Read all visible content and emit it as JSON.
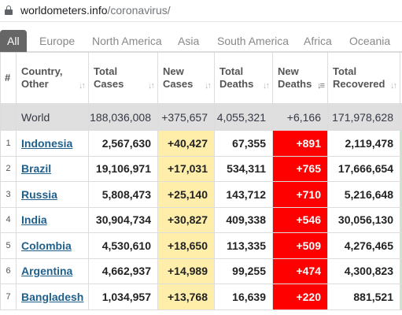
{
  "browser": {
    "url_domain": "worldometers.info",
    "url_path": "/coronavirus/"
  },
  "tabs": [
    "All",
    "Europe",
    "North America",
    "Asia",
    "South America",
    "Africa",
    "Oceania"
  ],
  "header": {
    "hash": "#",
    "country_line1": "Country,",
    "country_line2": "Other",
    "total_cases_line1": "Total",
    "total_cases_line2": "Cases",
    "new_cases_line1": "New",
    "new_cases_line2": "Cases",
    "total_deaths_line1": "Total",
    "total_deaths_line2": "Deaths",
    "new_deaths_line1": "New",
    "new_deaths_line2": "Deaths",
    "total_recovered_line1": "Total",
    "total_recovered_line2": "Recovered",
    "sort_icon": "sort-arrows-icon",
    "sort_active_icon": "sort-descending-icon"
  },
  "world": {
    "country": "World",
    "total_cases": "188,036,008",
    "new_cases": "+375,657",
    "total_deaths": "4,055,321",
    "new_deaths": "+6,166",
    "total_recovered": "171,978,628"
  },
  "rows": [
    {
      "idx": "1",
      "country": "Indonesia",
      "total_cases": "2,567,630",
      "new_cases": "+40,427",
      "total_deaths": "67,355",
      "new_deaths": "+891",
      "total_recovered": "2,119,478"
    },
    {
      "idx": "2",
      "country": "Brazil",
      "total_cases": "19,106,971",
      "new_cases": "+17,031",
      "total_deaths": "534,311",
      "new_deaths": "+765",
      "total_recovered": "17,666,654"
    },
    {
      "idx": "3",
      "country": "Russia",
      "total_cases": "5,808,473",
      "new_cases": "+25,140",
      "total_deaths": "143,712",
      "new_deaths": "+710",
      "total_recovered": "5,216,648"
    },
    {
      "idx": "4",
      "country": "India",
      "total_cases": "30,904,734",
      "new_cases": "+30,827",
      "total_deaths": "409,338",
      "new_deaths": "+546",
      "total_recovered": "30,056,130"
    },
    {
      "idx": "5",
      "country": "Colombia",
      "total_cases": "4,530,610",
      "new_cases": "+18,650",
      "total_deaths": "113,335",
      "new_deaths": "+509",
      "total_recovered": "4,276,465"
    },
    {
      "idx": "6",
      "country": "Argentina",
      "total_cases": "4,662,937",
      "new_cases": "+14,989",
      "total_deaths": "99,255",
      "new_deaths": "+474",
      "total_recovered": "4,300,823"
    },
    {
      "idx": "7",
      "country": "Bangladesh",
      "total_cases": "1,034,957",
      "new_cases": "+13,768",
      "total_deaths": "16,639",
      "new_deaths": "+220",
      "total_recovered": "881,521"
    }
  ],
  "colors": {
    "new_cases_bg": "#ffeeaa",
    "new_deaths_bg": "#ff0000",
    "country_link": "#1f5f8b",
    "world_row_bg": "#dfdfdf",
    "active_tab_bg": "#666666"
  }
}
